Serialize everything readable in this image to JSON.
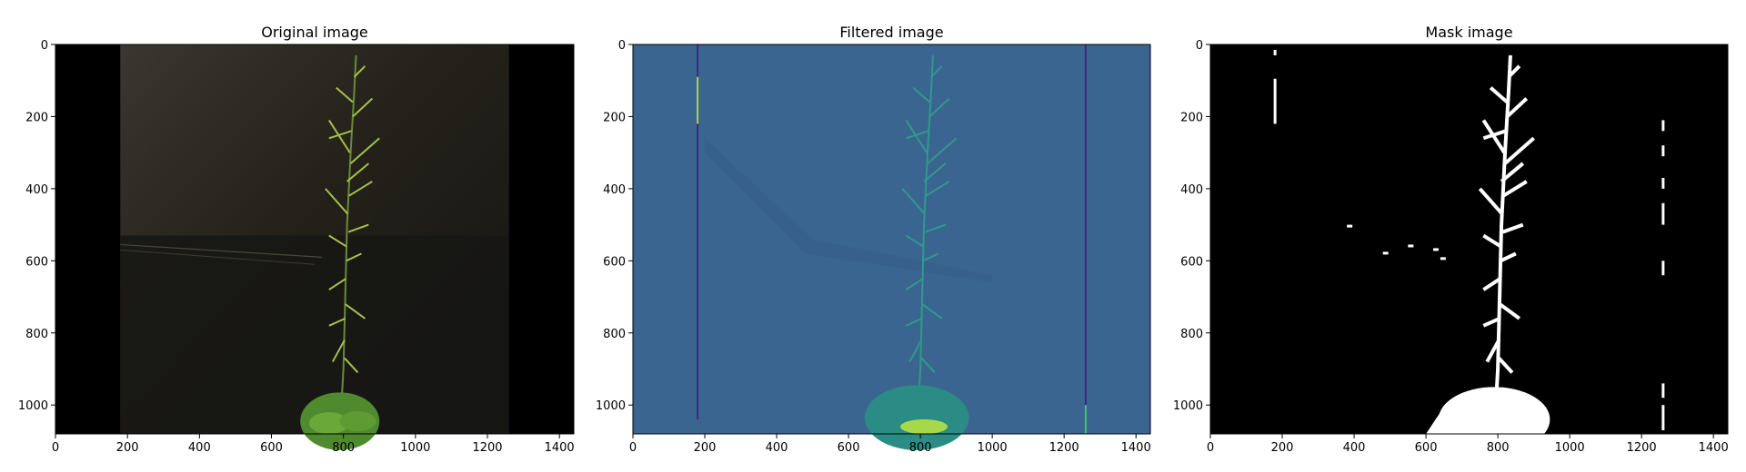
{
  "chart_data": [
    {
      "type": "image",
      "title": "Original image",
      "xlim": [
        0,
        1440
      ],
      "ylim": [
        1080,
        0
      ],
      "xticks": [
        0,
        200,
        400,
        600,
        800,
        1000,
        1200,
        1400
      ],
      "yticks": [
        0,
        200,
        400,
        600,
        800,
        1000
      ],
      "content": "color photograph of a flowering plant against a dark backdrop"
    },
    {
      "type": "image",
      "title": "Filtered image",
      "xlim": [
        0,
        1440
      ],
      "ylim": [
        1080,
        0
      ],
      "xticks": [
        0,
        200,
        400,
        600,
        800,
        1000,
        1200,
        1400
      ],
      "yticks": [
        0,
        200,
        400,
        600,
        800,
        1000
      ],
      "colormap": "viridis"
    },
    {
      "type": "image",
      "title": "Mask image",
      "xlim": [
        0,
        1440
      ],
      "ylim": [
        1080,
        0
      ],
      "xticks": [
        0,
        200,
        400,
        600,
        800,
        1000,
        1200,
        1400
      ],
      "yticks": [
        0,
        200,
        400,
        600,
        800,
        1000
      ],
      "colormap": "binary (black/white)"
    }
  ],
  "colors": {
    "original_background": "#1c1b18",
    "original_side_bars": "#000000",
    "plant_green": "#a7c04a",
    "filtered_background": "#3a6591",
    "filtered_plant": "#2f9a8a",
    "filtered_highlight": "#a6d84a",
    "filtered_dark_line": "#3b2a7a",
    "mask_background": "#000000",
    "mask_foreground": "#ffffff"
  }
}
